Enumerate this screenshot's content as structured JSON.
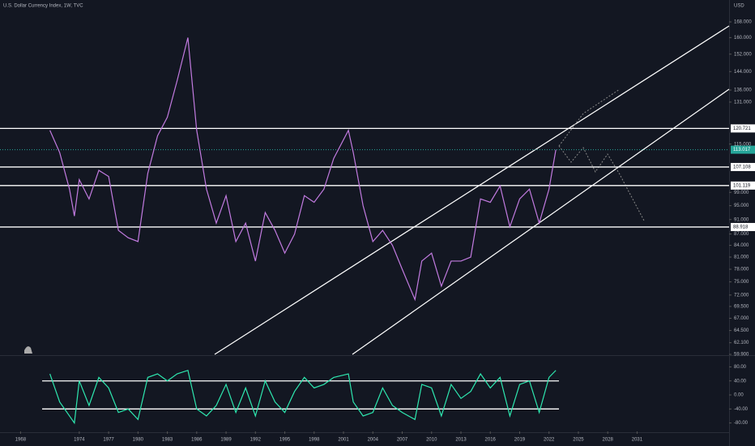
{
  "chart_data": {
    "type": "line",
    "title": "U.S. Dollar Currency Index, 1W, TVC",
    "currency": "USD",
    "log_scale": true,
    "color": "#c27be0",
    "x": [
      1971,
      1972,
      1973,
      1973.5,
      1974,
      1975,
      1976,
      1977,
      1978,
      1979,
      1980,
      1981,
      1982,
      1983,
      1984,
      1985.1,
      1986,
      1987,
      1988,
      1989,
      1990,
      1991,
      1992,
      1993,
      1994,
      1995,
      1996,
      1997,
      1998,
      1999,
      2000,
      2001.5,
      2002,
      2003,
      2004,
      2005,
      2006,
      2007,
      2008.3,
      2009,
      2010,
      2011,
      2012,
      2013,
      2014,
      2015,
      2016,
      2017,
      2018,
      2019,
      2020,
      2021,
      2022,
      2022.7
    ],
    "values": [
      120,
      112,
      100,
      92,
      103,
      97,
      106,
      104,
      88,
      86,
      85,
      105,
      118,
      125,
      140,
      160,
      120,
      100,
      90,
      98,
      85,
      90,
      80,
      93,
      88,
      82,
      87,
      98,
      96,
      100,
      110,
      120,
      112,
      95,
      85,
      88,
      84,
      78,
      71,
      80,
      82,
      74,
      80,
      80,
      81,
      97,
      96,
      101,
      89,
      97,
      100,
      90,
      100,
      113
    ],
    "last_price": {
      "value": 113.017,
      "label": "113.017"
    },
    "levels": [
      120.721,
      107.108,
      101.119,
      88.918
    ],
    "level_labels": [
      "120.721",
      "107.108",
      "101.119",
      "88.918"
    ],
    "xlim": [
      1965.9,
      2040.4
    ],
    "xticks": [
      1968,
      1974,
      1977,
      1980,
      1983,
      1986,
      1989,
      1992,
      1995,
      1998,
      2001,
      2004,
      2007,
      2010,
      2013,
      2016,
      2019,
      2022,
      2025,
      2028,
      2031
    ],
    "ylim": [
      59.9,
      179.8
    ],
    "yticks": [
      {
        "value": 168,
        "label": "168.000"
      },
      {
        "value": 160,
        "label": "160.000"
      },
      {
        "value": 152,
        "label": "152.000"
      },
      {
        "value": 144,
        "label": "144.000"
      },
      {
        "value": 136,
        "label": "136.000"
      },
      {
        "value": 131,
        "label": "131.000"
      },
      {
        "value": 115,
        "label": "115.000"
      },
      {
        "value": 99,
        "label": "99.000"
      },
      {
        "value": 95,
        "label": "95.000"
      },
      {
        "value": 91,
        "label": "91.000"
      },
      {
        "value": 87,
        "label": "87.000"
      },
      {
        "value": 84,
        "label": "84.000"
      },
      {
        "value": 81,
        "label": "81.000"
      },
      {
        "value": 78,
        "label": "78.000"
      },
      {
        "value": 75,
        "label": "75.000"
      },
      {
        "value": 72,
        "label": "72.000"
      },
      {
        "value": 69.5,
        "label": "69.500"
      },
      {
        "value": 67,
        "label": "67.000"
      },
      {
        "value": 64.5,
        "label": "64.500"
      },
      {
        "value": 62.1,
        "label": "62.100"
      },
      {
        "value": 59.9,
        "label": "59.900"
      }
    ],
    "oscillator": {
      "color": "#2ee8b0",
      "values": [
        60,
        -20,
        -60,
        -80,
        40,
        -30,
        50,
        20,
        -50,
        -40,
        -70,
        50,
        60,
        40,
        60,
        70,
        -40,
        -60,
        -30,
        30,
        -50,
        20,
        -60,
        40,
        -20,
        -50,
        10,
        50,
        20,
        30,
        50,
        60,
        -20,
        -60,
        -50,
        20,
        -30,
        -50,
        -70,
        30,
        20,
        -60,
        30,
        -10,
        10,
        60,
        20,
        50,
        -60,
        30,
        40,
        -50,
        50,
        70
      ],
      "ylim": [
        -104,
        108.7
      ],
      "levels": [
        40,
        -40
      ],
      "yticks": [
        {
          "value": 80,
          "label": "80.00"
        },
        {
          "value": 40,
          "label": "40.00"
        },
        {
          "value": 0,
          "label": "0.00"
        },
        {
          "value": -40,
          "label": "-40.00"
        },
        {
          "value": -80,
          "label": "-80.00"
        }
      ]
    }
  }
}
